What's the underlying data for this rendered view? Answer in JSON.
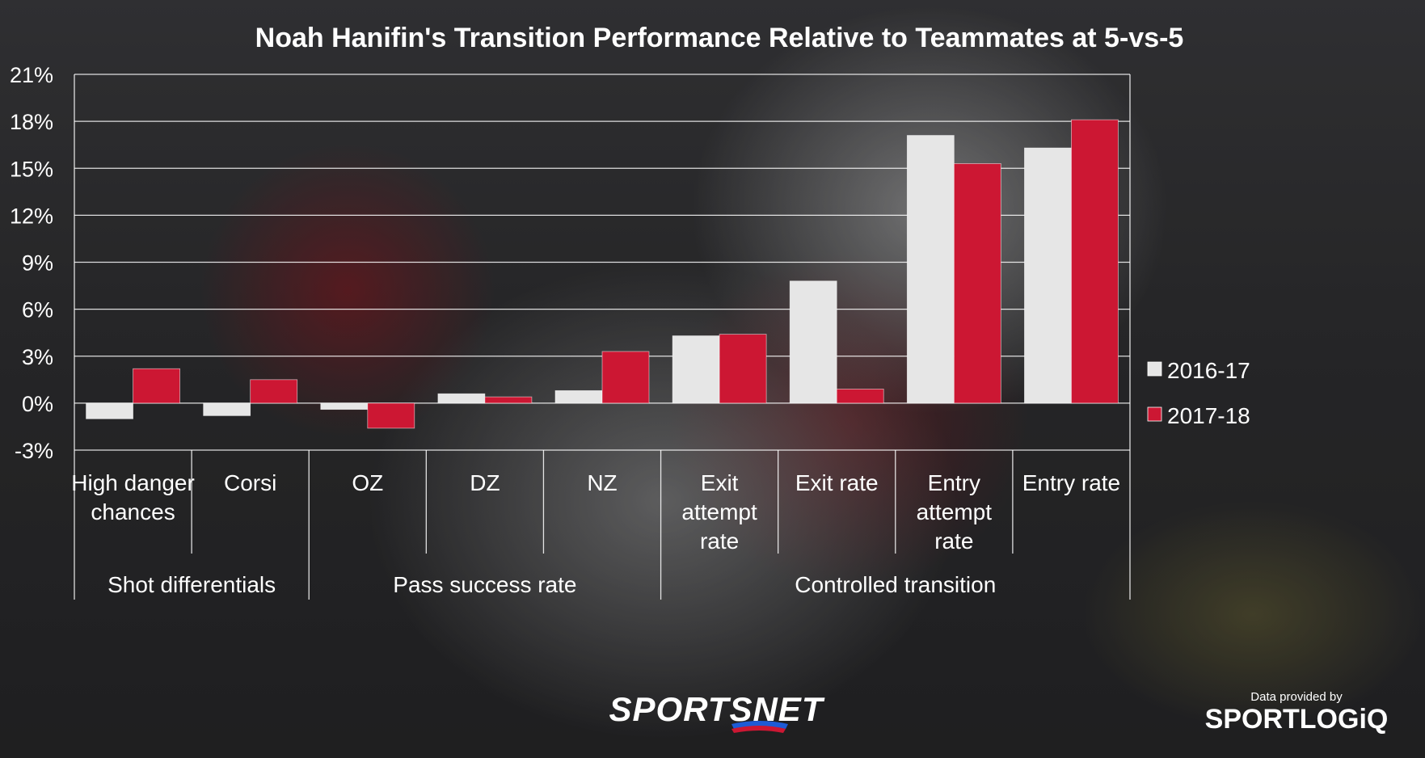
{
  "chart_data": {
    "type": "bar",
    "title": "Noah Hanifin's Transition Performance Relative to Teammates at 5-vs-5",
    "categories": [
      "High danger chances",
      "Corsi",
      "OZ",
      "DZ",
      "NZ",
      "Exit attempt rate",
      "Exit rate",
      "Entry attempt rate",
      "Entry rate"
    ],
    "category_lines": [
      [
        "High danger",
        "chances"
      ],
      [
        "Corsi"
      ],
      [
        "OZ"
      ],
      [
        "DZ"
      ],
      [
        "NZ"
      ],
      [
        "Exit",
        "attempt",
        "rate"
      ],
      [
        "Exit rate"
      ],
      [
        "Entry",
        "attempt",
        "rate"
      ],
      [
        "Entry rate"
      ]
    ],
    "groups": [
      {
        "label": "Shot differentials",
        "categories": [
          0,
          1
        ]
      },
      {
        "label": "Pass success rate",
        "categories": [
          2,
          3,
          4
        ]
      },
      {
        "label": "Controlled transition",
        "categories": [
          5,
          6,
          7,
          8
        ]
      }
    ],
    "series": [
      {
        "name": "2016-17",
        "color": "#e6e6e6",
        "values": [
          -1.0,
          -0.8,
          -0.4,
          0.6,
          0.8,
          4.3,
          7.8,
          17.1,
          16.3
        ]
      },
      {
        "name": "2017-18",
        "color": "#cc1733",
        "values": [
          2.2,
          1.5,
          -1.6,
          0.4,
          3.3,
          4.4,
          0.9,
          15.3,
          18.1
        ]
      }
    ],
    "ylim": [
      -3,
      21
    ],
    "yticks": [
      21,
      18,
      15,
      12,
      9,
      6,
      3,
      0,
      -3
    ],
    "ytick_labels": [
      "21%",
      "18%",
      "15%",
      "12%",
      "9%",
      "6%",
      "3%",
      "0%",
      "-3%"
    ],
    "grid": true,
    "legend": "right"
  },
  "branding": {
    "sportsnet": "SPORTSNET",
    "provided_by": "Data provided by",
    "sportlogiq": "SPORTLOGiQ"
  }
}
